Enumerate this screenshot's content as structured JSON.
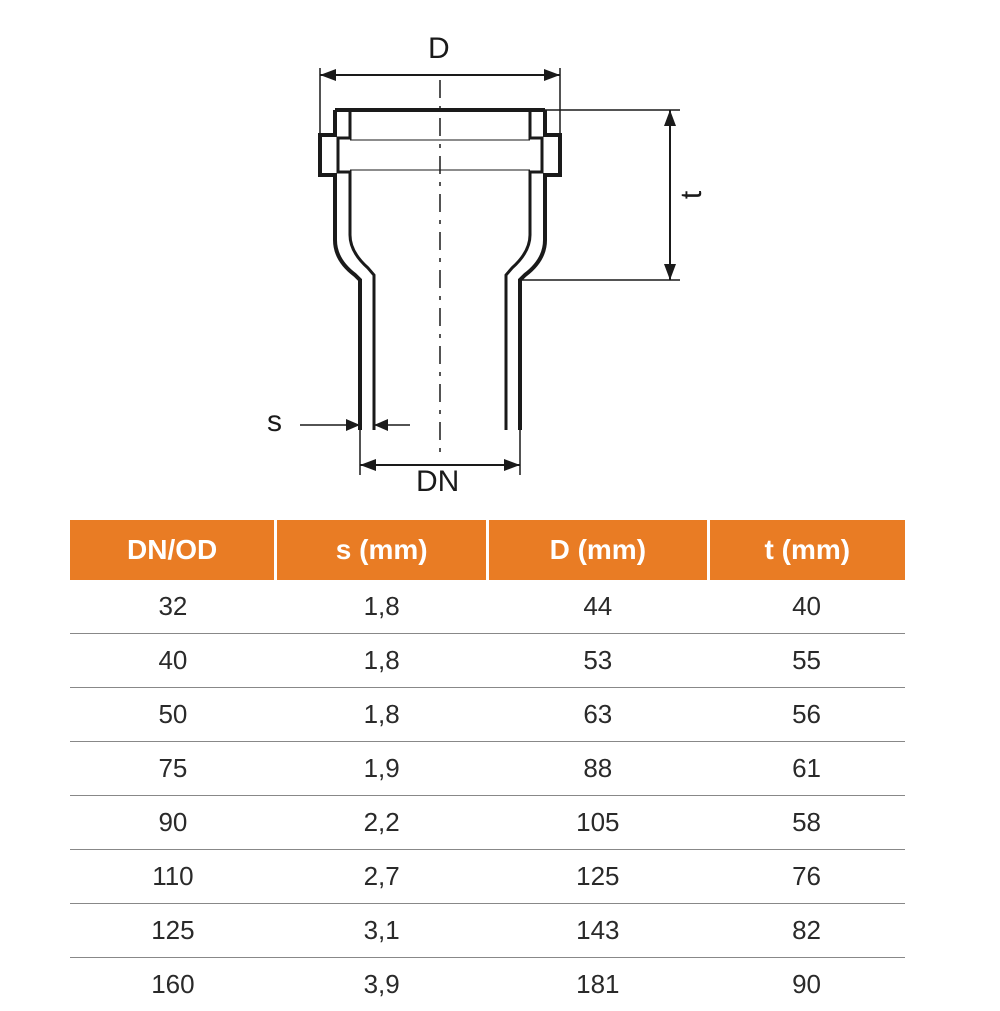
{
  "diagram": {
    "labels": {
      "D": "D",
      "t": "t",
      "s": "s",
      "DN": "DN"
    },
    "stroke": "#1a1a1a",
    "stroke_thick": 4,
    "stroke_thin": 2,
    "dash": "12 8"
  },
  "table": {
    "header_bg": "#e97c24",
    "header_fg": "#ffffff",
    "row_border": "#888888",
    "cell_fg": "#2a2a2a",
    "columns": [
      "DN/OD",
      "s (mm)",
      "D (mm)",
      "t (mm)"
    ],
    "rows": [
      [
        "32",
        "1,8",
        "44",
        "40"
      ],
      [
        "40",
        "1,8",
        "53",
        "55"
      ],
      [
        "50",
        "1,8",
        "63",
        "56"
      ],
      [
        "75",
        "1,9",
        "88",
        "61"
      ],
      [
        "90",
        "2,2",
        "105",
        "58"
      ],
      [
        "110",
        "2,7",
        "125",
        "76"
      ],
      [
        "125",
        "3,1",
        "143",
        "82"
      ],
      [
        "160",
        "3,9",
        "181",
        "90"
      ]
    ]
  }
}
